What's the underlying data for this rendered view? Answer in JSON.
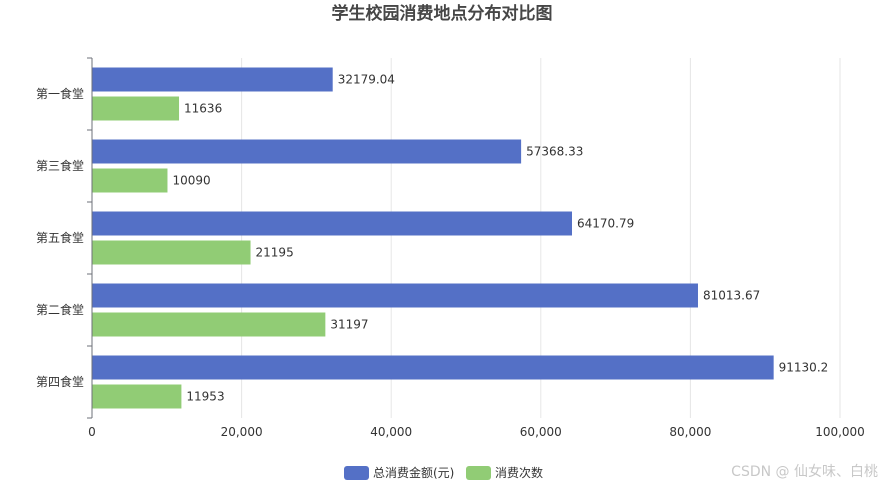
{
  "chart_data": {
    "type": "bar",
    "orientation": "horizontal",
    "title": "学生校园消费地点分布对比图",
    "categories": [
      "第一食堂",
      "第三食堂",
      "第五食堂",
      "第二食堂",
      "第四食堂"
    ],
    "series": [
      {
        "name": "总消费金额(元)",
        "color": "#5470c6",
        "values": [
          32179.04,
          57368.33,
          64170.79,
          81013.67,
          91130.2
        ],
        "labels": [
          "32179.04",
          "57368.33",
          "64170.79",
          "81013.67",
          "91130.2"
        ]
      },
      {
        "name": "消费次数",
        "color": "#91cc75",
        "values": [
          11636,
          10090,
          21195,
          31197,
          11953
        ],
        "labels": [
          "11636",
          "10090",
          "21195",
          "31197",
          "11953"
        ]
      }
    ],
    "xlim": [
      0,
      100000
    ],
    "xticks": [
      0,
      20000,
      40000,
      60000,
      80000,
      100000
    ],
    "xtick_labels": [
      "0",
      "20,000",
      "40,000",
      "60,000",
      "80,000",
      "100,000"
    ],
    "xlabel": "",
    "ylabel": "",
    "grid": true,
    "legend_position": "bottom-center"
  },
  "watermark": "CSDN @  仙女味、白桃"
}
